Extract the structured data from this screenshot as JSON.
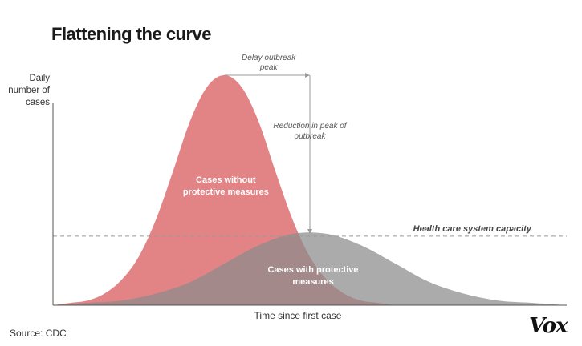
{
  "title": "Flattening the curve",
  "source": "Source: CDC",
  "logo": "Vox",
  "colors": {
    "peak_fill": "#e07a7c",
    "flat_fill": "#8a8a8a",
    "capacity_line": "#999999",
    "arrow": "#9a9a9a",
    "axis": "#555555"
  },
  "chart_data": {
    "type": "area",
    "title": "Flattening the curve",
    "xlabel": "Time since first case",
    "ylabel": "Daily number of cases",
    "series": [
      {
        "name": "Cases without protective measures",
        "label_lines": [
          "Cases without",
          "protective measures"
        ],
        "x": [
          0,
          5,
          10,
          15,
          20,
          25,
          30,
          35,
          40,
          45,
          50,
          55,
          60,
          65,
          70,
          75,
          80,
          85,
          90,
          95,
          100
        ],
        "values": [
          0,
          0.01,
          0.02,
          0.05,
          0.11,
          0.21,
          0.37,
          0.58,
          0.8,
          0.95,
          1.0,
          0.95,
          0.8,
          0.58,
          0.37,
          0.21,
          0.11,
          0.05,
          0.02,
          0.01,
          0
        ]
      },
      {
        "name": "Cases with protective measures",
        "label_lines": [
          "Cases with protective",
          "measures"
        ],
        "x": [
          0,
          10,
          20,
          30,
          40,
          50,
          60,
          70,
          80,
          90,
          100,
          110,
          120,
          130,
          140,
          150
        ],
        "values": [
          0,
          0.01,
          0.02,
          0.05,
          0.1,
          0.18,
          0.26,
          0.31,
          0.31,
          0.26,
          0.18,
          0.1,
          0.05,
          0.02,
          0.01,
          0
        ]
      }
    ],
    "capacity": {
      "label": "Health care system capacity",
      "value": 0.3
    },
    "annotations": {
      "delay": [
        "Delay outbreak",
        "peak"
      ],
      "reduction": [
        "Reduction in peak of",
        "outbreak"
      ]
    },
    "xlim": [
      0,
      150
    ],
    "ylim": [
      0,
      1
    ],
    "grid": false
  }
}
